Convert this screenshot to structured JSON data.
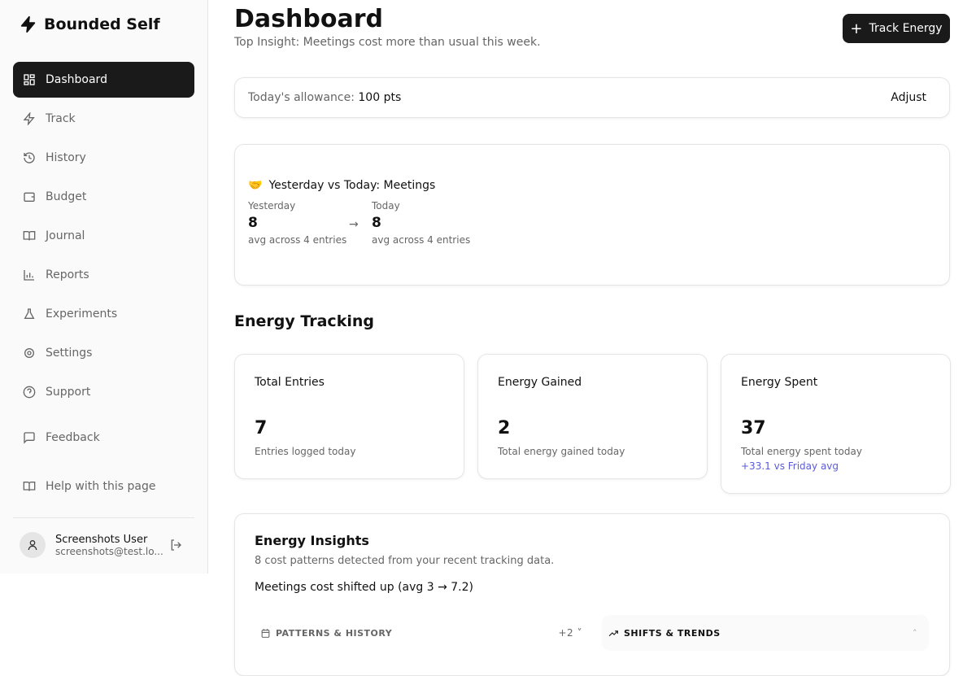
{
  "brand": {
    "name": "Bounded Self"
  },
  "sidebar": {
    "items": [
      {
        "label": "Dashboard",
        "icon": "dashboard-icon"
      },
      {
        "label": "Track",
        "icon": "zap-icon"
      },
      {
        "label": "History",
        "icon": "history-icon"
      },
      {
        "label": "Budget",
        "icon": "wallet-icon"
      },
      {
        "label": "Journal",
        "icon": "book-icon"
      },
      {
        "label": "Reports",
        "icon": "chart-icon"
      },
      {
        "label": "Experiments",
        "icon": "flask-icon"
      },
      {
        "label": "Settings",
        "icon": "gear-icon"
      },
      {
        "label": "Support",
        "icon": "help-icon"
      }
    ],
    "feedback": "Feedback",
    "help": "Help with this page"
  },
  "user": {
    "name": "Screenshots User",
    "email": "screenshots@test.lo..."
  },
  "header": {
    "title": "Dashboard",
    "insight": "Top Insight: Meetings cost more than usual this week.",
    "track_button": "Track Energy"
  },
  "allowance": {
    "label": "Today's allowance:",
    "value": "100 pts",
    "adjust": "Adjust"
  },
  "comparison": {
    "emoji": "🤝",
    "title": "Yesterday vs Today: Meetings",
    "yesterday": {
      "label": "Yesterday",
      "value": "8",
      "note": "avg across 4 entries"
    },
    "today": {
      "label": "Today",
      "value": "8",
      "note": "avg across 4 entries"
    }
  },
  "energy": {
    "heading": "Energy Tracking",
    "cards": [
      {
        "title": "Total Entries",
        "value": "7",
        "note": "Entries logged today"
      },
      {
        "title": "Energy Gained",
        "value": "2",
        "note": "Total energy gained today"
      },
      {
        "title": "Energy Spent",
        "value": "37",
        "note": "Total energy spent today",
        "delta": "+33.1 vs Friday avg"
      }
    ],
    "delta_color": "#5b5bd6"
  },
  "insights": {
    "title": "Energy Insights",
    "subtitle": "8 cost patterns detected from your recent tracking data.",
    "headline": "Meetings cost shifted up (avg 3 → 7.2)",
    "tabs": [
      {
        "label": "PATTERNS & HISTORY",
        "badge": "+2"
      },
      {
        "label": "SHIFTS & TRENDS"
      }
    ]
  }
}
